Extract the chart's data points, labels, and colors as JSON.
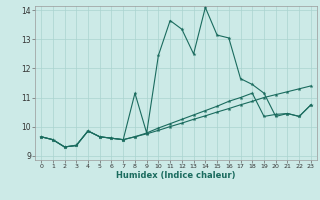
{
  "xlabel": "Humidex (Indice chaleur)",
  "background_color": "#cceae7",
  "grid_color": "#aad4d0",
  "line_color": "#1a6b5e",
  "xlim": [
    -0.5,
    23.5
  ],
  "ylim": [
    8.85,
    14.15
  ],
  "yticks": [
    9,
    10,
    11,
    12,
    13,
    14
  ],
  "xticks": [
    0,
    1,
    2,
    3,
    4,
    5,
    6,
    7,
    8,
    9,
    10,
    11,
    12,
    13,
    14,
    15,
    16,
    17,
    18,
    19,
    20,
    21,
    22,
    23
  ],
  "line1_x": [
    0,
    1,
    2,
    3,
    4,
    5,
    6,
    7,
    8,
    9,
    10,
    11,
    12,
    13,
    14,
    15,
    16,
    17,
    18,
    19,
    20,
    21,
    22,
    23
  ],
  "line1_y": [
    9.65,
    9.55,
    9.3,
    9.35,
    9.85,
    9.65,
    9.6,
    9.55,
    9.65,
    9.75,
    9.87,
    10.0,
    10.12,
    10.25,
    10.37,
    10.5,
    10.62,
    10.75,
    10.87,
    11.0,
    11.1,
    11.2,
    11.3,
    11.4
  ],
  "line2_x": [
    0,
    1,
    2,
    3,
    4,
    5,
    6,
    7,
    8,
    9,
    10,
    11,
    12,
    13,
    14,
    15,
    16,
    17,
    18,
    19,
    20,
    21,
    22,
    23
  ],
  "line2_y": [
    9.65,
    9.55,
    9.3,
    9.35,
    9.85,
    9.65,
    9.6,
    9.55,
    9.65,
    9.78,
    9.95,
    10.1,
    10.25,
    10.4,
    10.55,
    10.7,
    10.87,
    11.0,
    11.15,
    10.35,
    10.42,
    10.45,
    10.35,
    10.75
  ],
  "line3_x": [
    0,
    1,
    2,
    3,
    4,
    5,
    6,
    7,
    8,
    9,
    10,
    11,
    12,
    13,
    14,
    15,
    16,
    17,
    18,
    19,
    20,
    21,
    22,
    23
  ],
  "line3_y": [
    9.65,
    9.55,
    9.3,
    9.35,
    9.85,
    9.65,
    9.6,
    9.55,
    11.15,
    9.78,
    12.45,
    13.65,
    13.35,
    12.5,
    14.1,
    13.15,
    13.05,
    11.65,
    11.45,
    11.15,
    10.35,
    10.45,
    10.35,
    10.75
  ]
}
